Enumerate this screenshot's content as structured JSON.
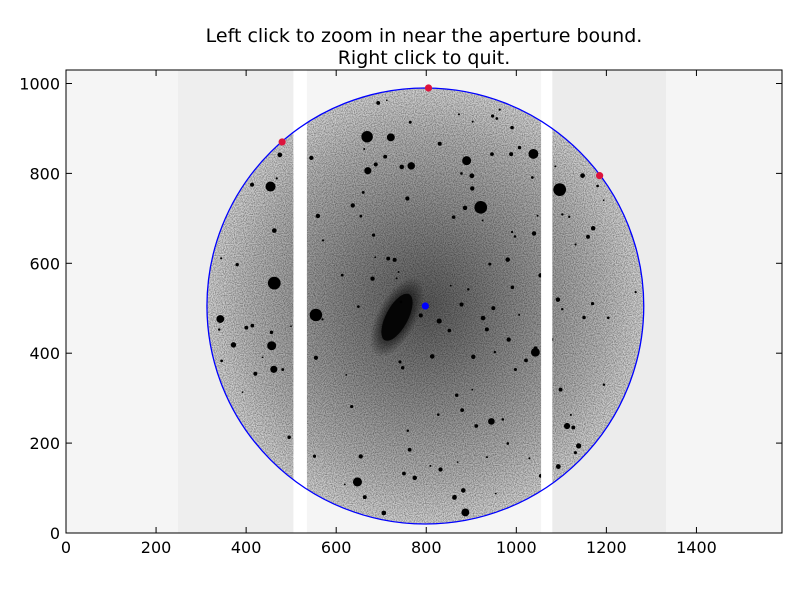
{
  "title_lines": [
    "Left click to zoom in near the aperture bound.",
    "Right click to quit."
  ],
  "chart_data": {
    "type": "image",
    "xlim": [
      0,
      1590
    ],
    "ylim": [
      0,
      1030
    ],
    "x_ticks": [
      0,
      200,
      400,
      600,
      800,
      1000,
      1200,
      1400
    ],
    "y_ticks": [
      0,
      200,
      400,
      600,
      800,
      1000
    ],
    "x_tick_labels": [
      "0",
      "200",
      "400",
      "600",
      "800",
      "1000",
      "1200",
      "1400"
    ],
    "y_tick_labels": [
      "0",
      "200",
      "400",
      "600",
      "800",
      "1000"
    ],
    "image": {
      "content": "grayscale astronomical exposure: spiral galaxy near center with scattered stars",
      "detector_gaps_x": [
        [
          505,
          535
        ],
        [
          1055,
          1080
        ]
      ],
      "galaxy_center": [
        735,
        480
      ]
    },
    "aperture_circle": {
      "center": [
        798,
        505
      ],
      "radius_x": 485,
      "radius_y": 485,
      "color": "#0000ff"
    },
    "center_marker": {
      "x": 798,
      "y": 505,
      "color": "#0000ff"
    },
    "boundary_points": [
      {
        "x": 480,
        "y": 870,
        "color": "#dc143c"
      },
      {
        "x": 805,
        "y": 990,
        "color": "#dc143c"
      },
      {
        "x": 1185,
        "y": 795,
        "color": "#dc143c"
      }
    ]
  }
}
